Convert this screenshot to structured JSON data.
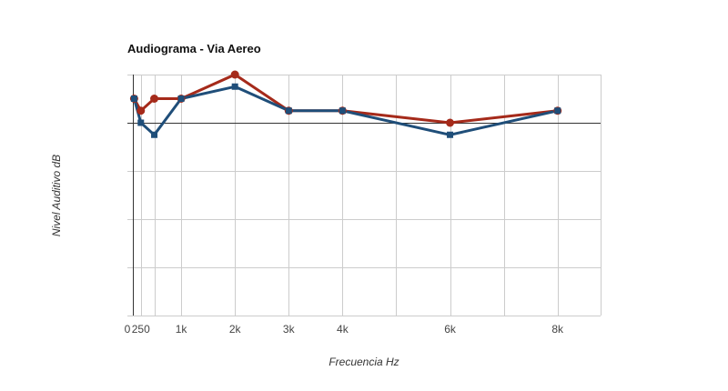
{
  "chart_data": {
    "type": "line",
    "title": "Audiograma - Via Aereo",
    "xlabel": "Frecuencia Hz",
    "ylabel": "Nivel Auditivo dB",
    "xlim": [
      0,
      8800
    ],
    "ylim": [
      0,
      100
    ],
    "zero_line_y": 80,
    "x_ticks": [
      {
        "value": 0,
        "label": "0"
      },
      {
        "value": 250,
        "label": "250"
      },
      {
        "value": 1000,
        "label": "1k"
      },
      {
        "value": 2000,
        "label": "2k"
      },
      {
        "value": 3000,
        "label": "3k"
      },
      {
        "value": 4000,
        "label": "4k"
      },
      {
        "value": 6000,
        "label": "6k"
      },
      {
        "value": 8000,
        "label": "8k"
      }
    ],
    "x_gridlines": [
      250,
      500,
      1000,
      2000,
      3000,
      4000,
      5000,
      6000,
      7000,
      8000,
      8800
    ],
    "y_gridlines": [
      0,
      20,
      40,
      60,
      80,
      100
    ],
    "grid": true,
    "legend": "none",
    "series": [
      {
        "color": "#a52a1a",
        "marker": "circle",
        "x": [
          125,
          250,
          500,
          1000,
          2000,
          3000,
          4000,
          6000,
          8000
        ],
        "values": [
          90,
          85,
          90,
          90,
          100,
          85,
          85,
          80,
          85
        ]
      },
      {
        "color": "#1f4e79",
        "marker": "square",
        "x": [
          125,
          250,
          500,
          1000,
          2000,
          3000,
          4000,
          6000,
          8000
        ],
        "values": [
          90,
          80,
          75,
          90,
          95,
          85,
          85,
          75,
          85
        ]
      }
    ]
  }
}
